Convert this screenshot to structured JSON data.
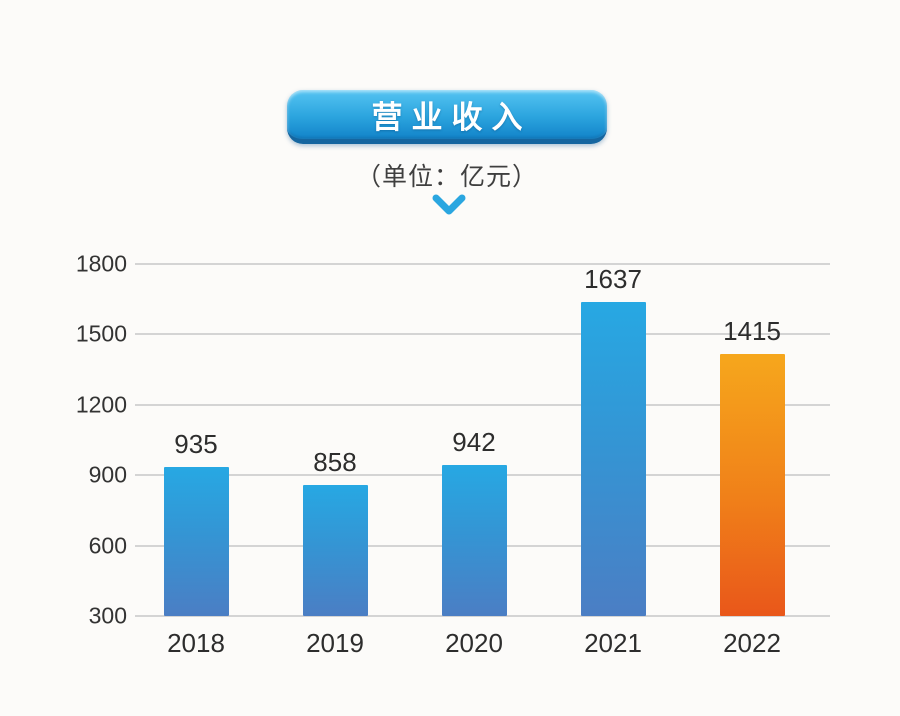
{
  "header": {
    "title": "营业收入",
    "subtitle": "（单位：亿元）",
    "arrow_icon": "chevron-down-icon"
  },
  "colors": {
    "page_bg": "#fcfbf9",
    "badge_top": "#55c4f2",
    "badge_mid": "#2ba4de",
    "badge_bottom": "#1283c9",
    "badge_edge": "#1566a0",
    "accent_blue": "#2aa6e0",
    "grid": "#d4d4d4",
    "bar_blue_top": "#27a8e3",
    "bar_blue_mid": "#3495d4",
    "bar_blue_bottom": "#4b7ec4",
    "bar_orange_top": "#f6a71c",
    "bar_orange_mid": "#f08019",
    "bar_orange_bottom": "#e9571a"
  },
  "chart_data": {
    "type": "bar",
    "title": "营业收入",
    "unit_label": "（单位：亿元）",
    "categories": [
      "2018",
      "2019",
      "2020",
      "2021",
      "2022"
    ],
    "values": [
      935,
      858,
      942,
      1637,
      1415
    ],
    "bar_styles": [
      "blue",
      "blue",
      "blue",
      "blue",
      "orange"
    ],
    "ylim": [
      300,
      1800
    ],
    "yticks": [
      1800,
      1500,
      1200,
      900,
      600,
      300
    ],
    "grid": "horizontal",
    "legend": "none",
    "xlabel": "",
    "ylabel": ""
  }
}
